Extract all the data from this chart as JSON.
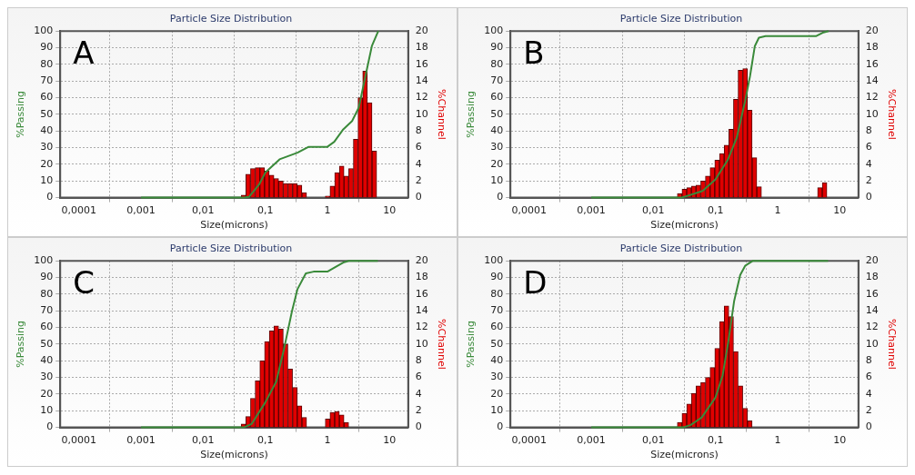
{
  "chart_data": [
    {
      "type": "histogram",
      "title": "Particle Size Distribution",
      "xlabel": "Size(microns)",
      "ylabel": "%Passing",
      "y2label": "%Channel",
      "annotations": [
        "A"
      ],
      "log": "x",
      "xlim": [
        5e-05,
        20
      ],
      "xticks": [
        {
          "value": 0.0001,
          "label": "0,0001"
        },
        {
          "value": 0.001,
          "label": "0,001"
        },
        {
          "value": 0.01,
          "label": "0,01"
        },
        {
          "value": 0.1,
          "label": "0,1"
        },
        {
          "value": 1,
          "label": "1"
        },
        {
          "value": 10,
          "label": "10"
        }
      ],
      "ylim": [
        0,
        100
      ],
      "yticks": [
        0,
        10,
        20,
        30,
        40,
        50,
        60,
        70,
        80,
        90,
        100
      ],
      "y2lim": [
        0,
        20
      ],
      "y2ticks": [
        0,
        2,
        4,
        6,
        8,
        10,
        12,
        14,
        16,
        18,
        20
      ],
      "grid": true,
      "series": [
        {
          "type": "histogram",
          "axis": "y2",
          "color": "#e00000",
          "bins": [
            0.0243,
            0.0289,
            0.0344,
            0.0409,
            0.0486,
            0.0578,
            0.0688,
            0.0818,
            0.0972,
            0.116,
            0.138,
            0.164,
            0.195,
            0.231,
            0.275,
            0.327,
            0.389,
            0.463,
            0.55,
            0.654,
            0.778,
            0.925,
            1.1,
            1.31,
            1.56,
            1.85,
            2.2,
            2.62,
            3.11,
            3.7,
            4.4,
            5.23,
            6.22,
            7.4
          ],
          "values": [
            0,
            0,
            0,
            0.3,
            2.8,
            3.5,
            3.6,
            3.6,
            3.2,
            2.7,
            2.3,
            2.0,
            1.7,
            1.7,
            1.7,
            1.5,
            0.6,
            0,
            0,
            0,
            0,
            0.2,
            1.4,
            3.0,
            3.8,
            2.6,
            3.5,
            7.0,
            12.0,
            15.2,
            11.4,
            5.6,
            0
          ]
        },
        {
          "type": "line",
          "color": "#3a8a3a",
          "x": [
            0.001,
            0.045,
            0.055,
            0.08,
            0.1,
            0.17,
            0.33,
            0.5,
            1,
            1.29,
            1.8,
            2.5,
            3.2,
            4.1,
            5.2,
            6.6
          ],
          "values": [
            0,
            0,
            0.5,
            8,
            15,
            23,
            27,
            30.5,
            30.5,
            33.5,
            41,
            46,
            54,
            73,
            91,
            100
          ]
        }
      ]
    },
    {
      "type": "histogram",
      "title": "Particle Size Distribution",
      "xlabel": "Size(microns)",
      "ylabel": "%Passing",
      "y2label": "%Channel",
      "annotations": [
        "B"
      ],
      "log": "x",
      "xlim": [
        5e-05,
        20
      ],
      "xticks": [
        {
          "value": 0.0001,
          "label": "0,0001"
        },
        {
          "value": 0.001,
          "label": "0,001"
        },
        {
          "value": 0.01,
          "label": "0,01"
        },
        {
          "value": 0.1,
          "label": "0,1"
        },
        {
          "value": 1,
          "label": "1"
        },
        {
          "value": 10,
          "label": "10"
        }
      ],
      "ylim": [
        0,
        100
      ],
      "yticks": [
        0,
        10,
        20,
        30,
        40,
        50,
        60,
        70,
        80,
        90,
        100
      ],
      "y2lim": [
        0,
        20
      ],
      "y2ticks": [
        0,
        2,
        4,
        6,
        8,
        10,
        12,
        14,
        16,
        18,
        20
      ],
      "grid": true,
      "series": [
        {
          "type": "histogram",
          "axis": "y2",
          "color": "#e00000",
          "bins": [
            0.0243,
            0.0289,
            0.0344,
            0.0409,
            0.0486,
            0.0578,
            0.0688,
            0.0818,
            0.0972,
            0.116,
            0.138,
            0.164,
            0.195,
            0.231,
            0.275,
            0.327,
            0.389,
            0.463,
            0.55,
            0.654,
            0.778,
            0.925,
            1.1,
            1.31,
            1.56,
            1.85,
            2.2,
            2.62,
            3.11,
            3.7,
            4.4,
            5.23,
            6.22,
            7.4
          ],
          "values": [
            0.5,
            1.0,
            1.2,
            1.4,
            1.5,
            2.0,
            2.6,
            3.6,
            4.5,
            5.3,
            6.3,
            8.2,
            11.8,
            15.3,
            15.5,
            10.5,
            4.8,
            1.3,
            0,
            0,
            0,
            0,
            0,
            0,
            0,
            0,
            0,
            0,
            0,
            0,
            1.2,
            1.8,
            0
          ]
        },
        {
          "type": "line",
          "color": "#3a8a3a",
          "x": [
            0.001,
            0.028,
            0.035,
            0.062,
            0.1,
            0.157,
            0.22,
            0.3,
            0.36,
            0.43,
            0.5,
            0.64,
            4.2,
            5.3,
            6.6
          ],
          "values": [
            0,
            0,
            1,
            4,
            11,
            22.5,
            36,
            58,
            73,
            91,
            96,
            97,
            97,
            99,
            100
          ]
        }
      ]
    },
    {
      "type": "histogram",
      "title": "Particle Size Distribution",
      "xlabel": "Size(microns)",
      "ylabel": "%Passing",
      "y2label": "%Channel",
      "annotations": [
        "C"
      ],
      "log": "x",
      "xlim": [
        5e-05,
        20
      ],
      "xticks": [
        {
          "value": 0.0001,
          "label": "0,0001"
        },
        {
          "value": 0.001,
          "label": "0,001"
        },
        {
          "value": 0.01,
          "label": "0,01"
        },
        {
          "value": 0.1,
          "label": "0,1"
        },
        {
          "value": 1,
          "label": "1"
        },
        {
          "value": 10,
          "label": "10"
        }
      ],
      "ylim": [
        0,
        100
      ],
      "yticks": [
        0,
        10,
        20,
        30,
        40,
        50,
        60,
        70,
        80,
        90,
        100
      ],
      "y2lim": [
        0,
        20
      ],
      "y2ticks": [
        0,
        2,
        4,
        6,
        8,
        10,
        12,
        14,
        16,
        18,
        20
      ],
      "grid": true,
      "series": [
        {
          "type": "histogram",
          "axis": "y2",
          "color": "#e00000",
          "bins": [
            0.0243,
            0.0289,
            0.0344,
            0.0409,
            0.0486,
            0.0578,
            0.0688,
            0.0818,
            0.0972,
            0.116,
            0.138,
            0.164,
            0.195,
            0.231,
            0.275,
            0.327,
            0.389,
            0.463,
            0.55,
            0.654,
            0.778,
            0.925,
            1.1,
            1.31,
            1.56,
            1.85,
            2.2,
            2.62,
            3.11,
            3.7,
            4.4,
            5.23,
            6.22,
            7.4
          ],
          "values": [
            0,
            0,
            0,
            0.4,
            1.3,
            3.5,
            5.6,
            8.0,
            10.3,
            11.6,
            12.2,
            11.8,
            10.0,
            7.0,
            4.8,
            2.6,
            1.2,
            0,
            0,
            0,
            0,
            1.0,
            1.8,
            1.9,
            1.5,
            0.6,
            0,
            0,
            0,
            0,
            0,
            0,
            0
          ]
        },
        {
          "type": "line",
          "color": "#3a8a3a",
          "x": [
            0.001,
            0.045,
            0.06,
            0.1,
            0.15,
            0.2,
            0.27,
            0.33,
            0.45,
            0.6,
            1.0,
            1.3,
            1.8,
            2.2,
            6.5
          ],
          "values": [
            0,
            0,
            2,
            15,
            27.5,
            47,
            70,
            83,
            92.5,
            93.5,
            93.5,
            96,
            99,
            100,
            100
          ]
        }
      ]
    },
    {
      "type": "histogram",
      "title": "Particle Size Distribution",
      "xlabel": "Size(microns)",
      "ylabel": "%Passing",
      "y2label": "%Channel",
      "annotations": [
        "D"
      ],
      "log": "x",
      "xlim": [
        5e-05,
        20
      ],
      "xticks": [
        {
          "value": 0.0001,
          "label": "0,0001"
        },
        {
          "value": 0.001,
          "label": "0,001"
        },
        {
          "value": 0.01,
          "label": "0,01"
        },
        {
          "value": 0.1,
          "label": "0,1"
        },
        {
          "value": 1,
          "label": "1"
        },
        {
          "value": 10,
          "label": "10"
        }
      ],
      "ylim": [
        0,
        100
      ],
      "yticks": [
        0,
        10,
        20,
        30,
        40,
        50,
        60,
        70,
        80,
        90,
        100
      ],
      "y2lim": [
        0,
        20
      ],
      "y2ticks": [
        0,
        2,
        4,
        6,
        8,
        10,
        12,
        14,
        16,
        18,
        20
      ],
      "grid": true,
      "series": [
        {
          "type": "histogram",
          "axis": "y2",
          "color": "#e00000",
          "bins": [
            0.0243,
            0.0289,
            0.0344,
            0.0409,
            0.0486,
            0.0578,
            0.0688,
            0.0818,
            0.0972,
            0.116,
            0.138,
            0.164,
            0.195,
            0.231,
            0.275,
            0.327,
            0.389,
            0.463,
            0.55,
            0.654,
            0.778,
            0.925,
            1.1,
            1.31,
            1.56,
            1.85,
            2.2,
            2.62,
            3.11,
            3.7,
            4.4,
            5.23,
            6.22,
            7.4
          ],
          "values": [
            0.6,
            1.7,
            2.8,
            4.1,
            5.0,
            5.4,
            6.0,
            7.2,
            9.5,
            12.7,
            14.6,
            13.3,
            9.1,
            5.0,
            2.3,
            0.8,
            0,
            0,
            0,
            0,
            0,
            0,
            0,
            0,
            0,
            0,
            0,
            0,
            0,
            0,
            0,
            0,
            0
          ]
        },
        {
          "type": "line",
          "color": "#3a8a3a",
          "x": [
            0.001,
            0.03,
            0.04,
            0.06,
            0.1,
            0.13,
            0.16,
            0.2,
            0.25,
            0.3,
            0.4,
            6.5
          ],
          "values": [
            0,
            0,
            1.5,
            6,
            18,
            31,
            51,
            76,
            91.5,
            97,
            100,
            100
          ]
        }
      ]
    }
  ]
}
